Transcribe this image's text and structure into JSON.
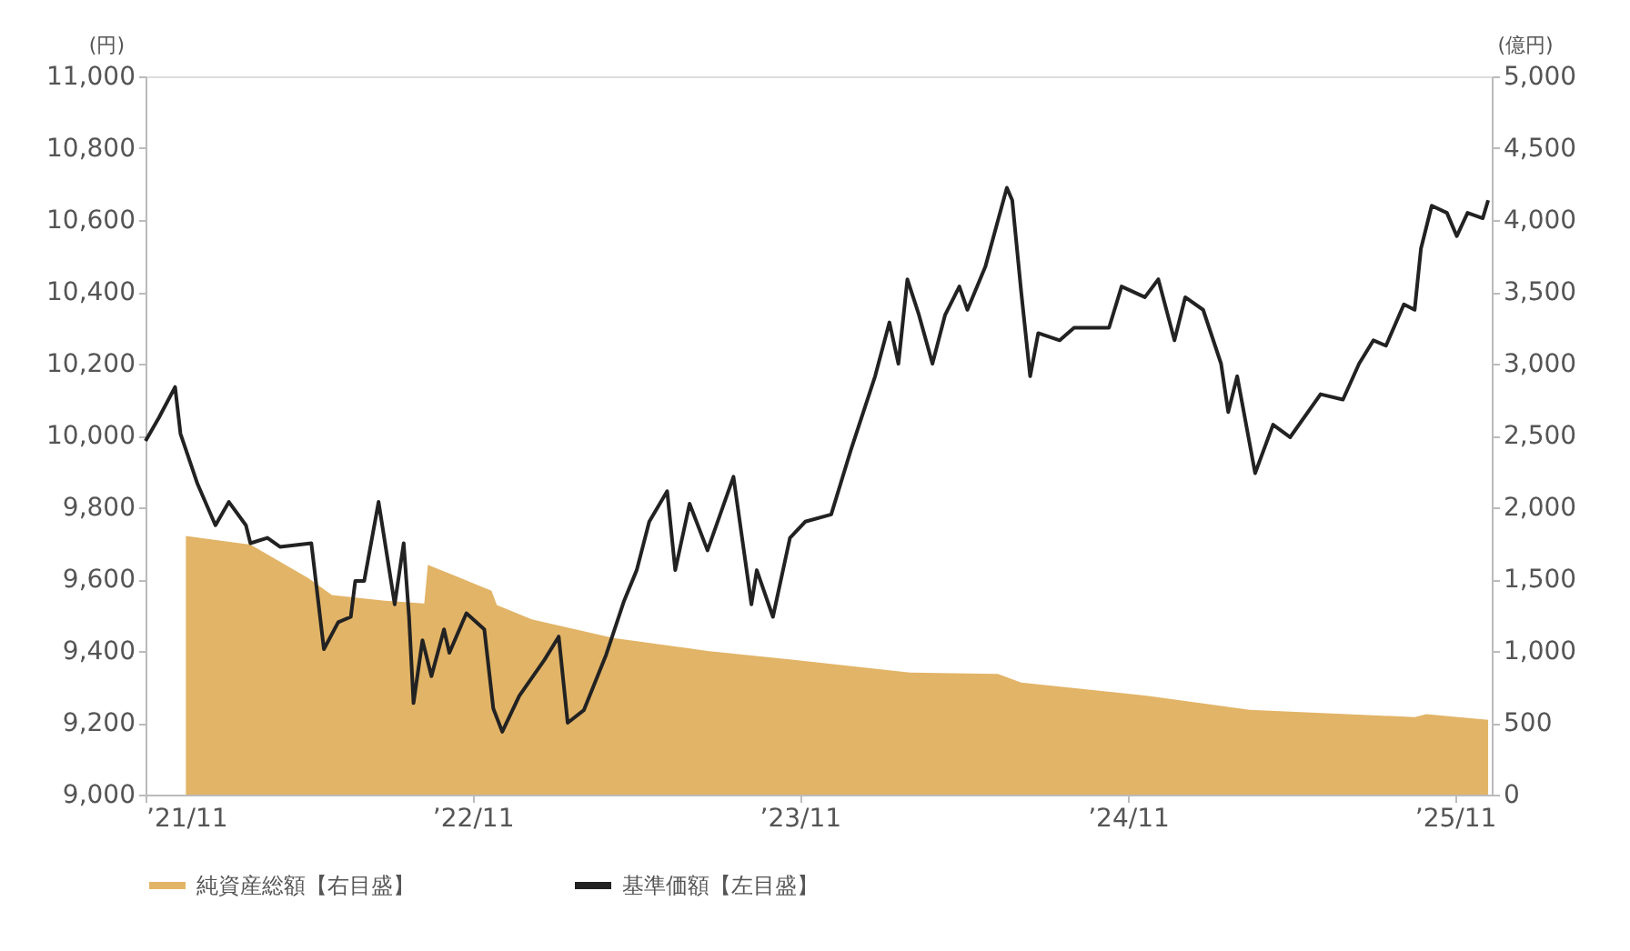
{
  "chart_data": {
    "type": "line",
    "ylabel": "(円)",
    "y2label": "(億円)",
    "xlim": [
      "2021-11-01",
      "2025-12-12"
    ],
    "xticks": [
      {
        "value": "2021-11-01",
        "label": "’21/11"
      },
      {
        "value": "2022-11-01",
        "label": "’22/11"
      },
      {
        "value": "2023-11-01",
        "label": "’23/11"
      },
      {
        "value": "2024-11-01",
        "label": "’24/11"
      },
      {
        "value": "2025-11-01",
        "label": "’25/11"
      }
    ],
    "ylim": [
      9000,
      11000
    ],
    "yticks": [
      {
        "value": 9000,
        "label": "9,000"
      },
      {
        "value": 9200,
        "label": "9,200"
      },
      {
        "value": 9400,
        "label": "9,400"
      },
      {
        "value": 9600,
        "label": "9,600"
      },
      {
        "value": 9800,
        "label": "9,800"
      },
      {
        "value": 10000,
        "label": "10,000"
      },
      {
        "value": 10200,
        "label": "10,200"
      },
      {
        "value": 10400,
        "label": "10,400"
      },
      {
        "value": 10600,
        "label": "10,600"
      },
      {
        "value": 10800,
        "label": "10,800"
      },
      {
        "value": 11000,
        "label": "11,000"
      }
    ],
    "y2lim": [
      0,
      5000
    ],
    "y2ticks": [
      0,
      500,
      {
        "value": 1000,
        "label": "1,000"
      },
      {
        "value": 1500,
        "label": "1,500"
      },
      {
        "value": 2000,
        "label": "2,000"
      },
      {
        "value": 2500,
        "label": "2,500"
      },
      {
        "value": 3000,
        "label": "3,000"
      },
      {
        "value": 3500,
        "label": "3,500"
      },
      {
        "value": 4000,
        "label": "4,000"
      },
      {
        "value": 4500,
        "label": "4,500"
      },
      {
        "value": 5000,
        "label": "5,000"
      }
    ],
    "legend": "bottom",
    "series": [
      {
        "name": "純資産総額【右目盛】",
        "type": "area",
        "axis": "y2",
        "color": "#e2b467",
        "x": [
          "2021-12-16",
          "2022-02-26",
          "2022-05-01",
          "2022-05-28",
          "2022-07-26",
          "2022-09-08",
          "2022-09-12",
          "2022-11-22",
          "2022-11-28",
          "2023-01-06",
          "2023-04-07",
          "2023-07-21",
          "2023-10-23",
          "2024-03-03",
          "2024-06-09",
          "2024-07-05",
          "2024-11-20",
          "2025-03-17",
          "2025-09-17",
          "2025-09-30",
          "2025-12-08"
        ],
        "values": [
          1800,
          1740,
          1510,
          1390,
          1350,
          1330,
          1600,
          1420,
          1320,
          1220,
          1090,
          1000,
          940,
          850,
          840,
          780,
          690,
          590,
          540,
          560,
          520
        ]
      },
      {
        "name": "基準価額【左目盛】",
        "type": "line",
        "color": "#222222",
        "x": [
          "2021-11-01",
          "2021-11-16",
          "2021-12-04",
          "2021-12-10",
          "2021-12-29",
          "2022-01-18",
          "2022-02-02",
          "2022-02-21",
          "2022-02-26",
          "2022-03-17",
          "2022-03-31",
          "2022-05-05",
          "2022-05-19",
          "2022-06-04",
          "2022-06-18",
          "2022-06-23",
          "2022-07-03",
          "2022-07-19",
          "2022-08-06",
          "2022-08-16",
          "2022-08-22",
          "2022-08-27",
          "2022-09-06",
          "2022-09-16",
          "2022-09-30",
          "2022-10-06",
          "2022-10-25",
          "2022-11-14",
          "2022-11-24",
          "2022-12-04",
          "2022-12-23",
          "2023-01-20",
          "2023-02-05",
          "2023-02-15",
          "2023-03-05",
          "2023-03-30",
          "2023-04-19",
          "2023-05-03",
          "2023-05-17",
          "2023-06-06",
          "2023-06-15",
          "2023-07-01",
          "2023-07-21",
          "2023-08-19",
          "2023-09-08",
          "2023-09-14",
          "2023-10-02",
          "2023-10-21",
          "2023-11-07",
          "2023-12-06",
          "2023-12-28",
          "2024-01-24",
          "2024-02-09",
          "2024-02-19",
          "2024-02-29",
          "2024-03-13",
          "2024-03-28",
          "2024-04-11",
          "2024-04-27",
          "2024-05-06",
          "2024-05-26",
          "2024-06-19",
          "2024-06-25",
          "2024-07-05",
          "2024-07-15",
          "2024-07-24",
          "2024-08-17",
          "2024-09-02",
          "2024-10-11",
          "2024-10-25",
          "2024-11-20",
          "2024-12-05",
          "2024-12-23",
          "2025-01-04",
          "2025-01-24",
          "2025-02-13",
          "2025-02-21",
          "2025-03-03",
          "2025-03-23",
          "2025-04-12",
          "2025-05-01",
          "2025-06-04",
          "2025-06-29",
          "2025-07-17",
          "2025-08-02",
          "2025-08-16",
          "2025-09-05",
          "2025-09-17",
          "2025-09-24",
          "2025-10-06",
          "2025-10-23",
          "2025-11-03",
          "2025-11-15",
          "2025-12-02",
          "2025-12-08"
        ],
        "values": [
          9985,
          10050,
          10135,
          10005,
          9865,
          9750,
          9815,
          9750,
          9700,
          9715,
          9690,
          9700,
          9405,
          9480,
          9495,
          9595,
          9595,
          9815,
          9530,
          9700,
          9495,
          9255,
          9430,
          9330,
          9460,
          9395,
          9505,
          9460,
          9240,
          9175,
          9275,
          9375,
          9440,
          9200,
          9235,
          9390,
          9540,
          9625,
          9760,
          9845,
          9625,
          9810,
          9680,
          9885,
          9530,
          9625,
          9495,
          9715,
          9760,
          9780,
          9960,
          10165,
          10315,
          10200,
          10435,
          10335,
          10200,
          10335,
          10415,
          10350,
          10470,
          10690,
          10655,
          10400,
          10165,
          10285,
          10265,
          10300,
          10300,
          10415,
          10385,
          10435,
          10265,
          10385,
          10350,
          10200,
          10065,
          10165,
          9895,
          10030,
          9995,
          10115,
          10100,
          10200,
          10265,
          10250,
          10365,
          10350,
          10520,
          10640,
          10620,
          10555,
          10620,
          10605,
          10655
        ]
      }
    ]
  }
}
